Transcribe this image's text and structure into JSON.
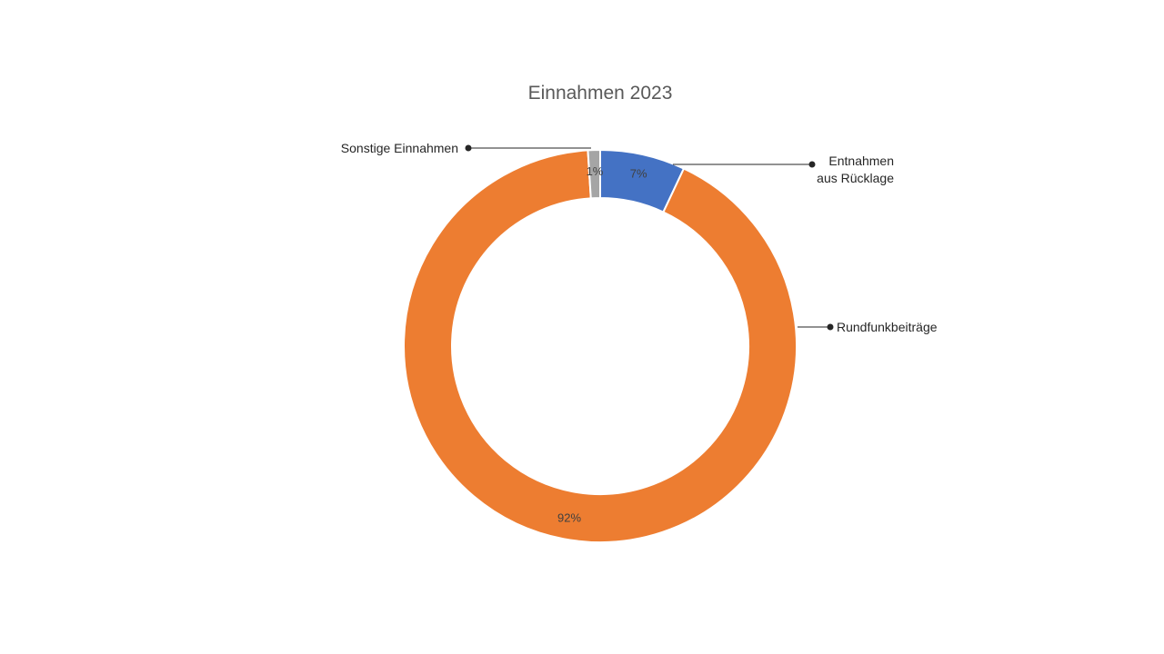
{
  "chart_data": {
    "type": "pie",
    "variant": "doughnut",
    "title": "Einnahmen 2023",
    "legend": "none",
    "data_labels": "percent",
    "slices": [
      {
        "name": "Entnahmen aus Rücklage",
        "label_lines": [
          "Entnahmen",
          "aus Rücklage"
        ],
        "value": 7,
        "percent_label": "7%",
        "color": "#4472C4"
      },
      {
        "name": "Rundfunkbeiträge",
        "label_lines": [
          "Rundfunkbeiträge"
        ],
        "value": 92,
        "percent_label": "92%",
        "color": "#ED7D31"
      },
      {
        "name": "Sonstige Einnahmen",
        "label_lines": [
          "Sonstige Einnahmen"
        ],
        "value": 1,
        "percent_label": "1%",
        "color": "#A5A5A5"
      }
    ]
  }
}
